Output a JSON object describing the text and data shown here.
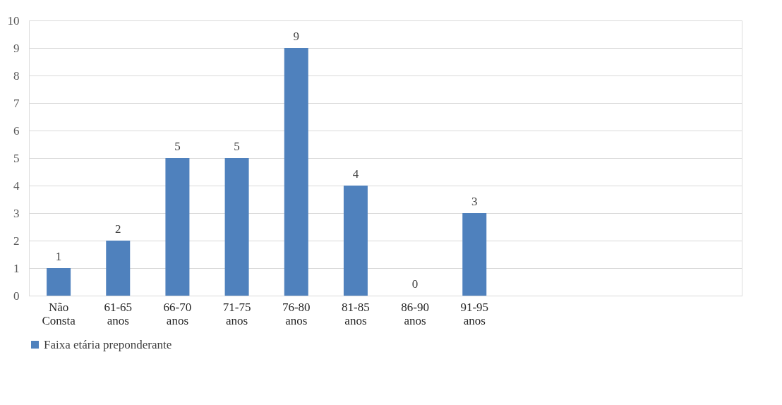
{
  "chart_data": {
    "type": "bar",
    "categories": [
      "Não Consta",
      "61-65 anos",
      "66-70 anos",
      "71-75 anos",
      "76-80 anos",
      "81-85 anos",
      "86-90 anos",
      "91-95 anos",
      null,
      null,
      null,
      null
    ],
    "series": [
      {
        "name": "Faixa etária preponderante",
        "color": "#4f81bd",
        "values": [
          1,
          2,
          5,
          5,
          9,
          4,
          0,
          3,
          null,
          null,
          null,
          null
        ]
      }
    ],
    "ylim": [
      0,
      10
    ],
    "yticks": [
      0,
      1,
      2,
      3,
      4,
      5,
      6,
      7,
      8,
      9,
      10
    ],
    "grid": "y",
    "data_labels": true,
    "legend": "bottom"
  }
}
